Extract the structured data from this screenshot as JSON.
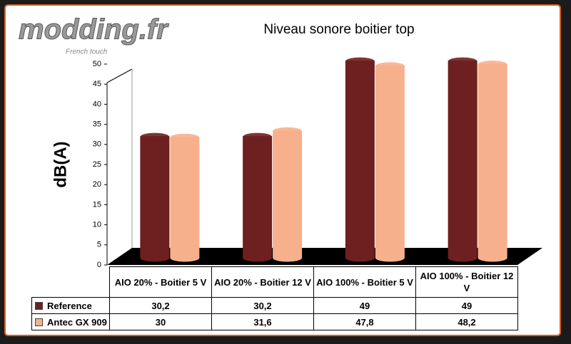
{
  "logo": {
    "name": "modding.fr",
    "tagline": "French touch"
  },
  "chart_data": {
    "type": "bar",
    "title": "Niveau sonore boitier top",
    "y_label": "dB(A)",
    "categories": [
      "AIO 20% - Boitier 5 V",
      "AIO 20% - Boitier 12 V",
      "AIO 100% - Boitier 5 V",
      "AIO 100% - Boitier 12 V"
    ],
    "series": [
      {
        "name": "Reference",
        "color": "#6e1f1f",
        "values": [
          30.2,
          30.2,
          49,
          49
        ],
        "value_labels": [
          "30,2",
          "30,2",
          "49",
          "49"
        ]
      },
      {
        "name": "Antec GX 909",
        "color": "#f7b08c",
        "values": [
          30,
          31.6,
          47.8,
          48.2
        ],
        "value_labels": [
          "30",
          "31,6",
          "47,8",
          "48,2"
        ]
      }
    ],
    "ylim": [
      0,
      50
    ],
    "yticks": [
      0,
      5,
      10,
      15,
      20,
      25,
      30,
      35,
      40,
      45,
      50
    ],
    "grid": false
  }
}
